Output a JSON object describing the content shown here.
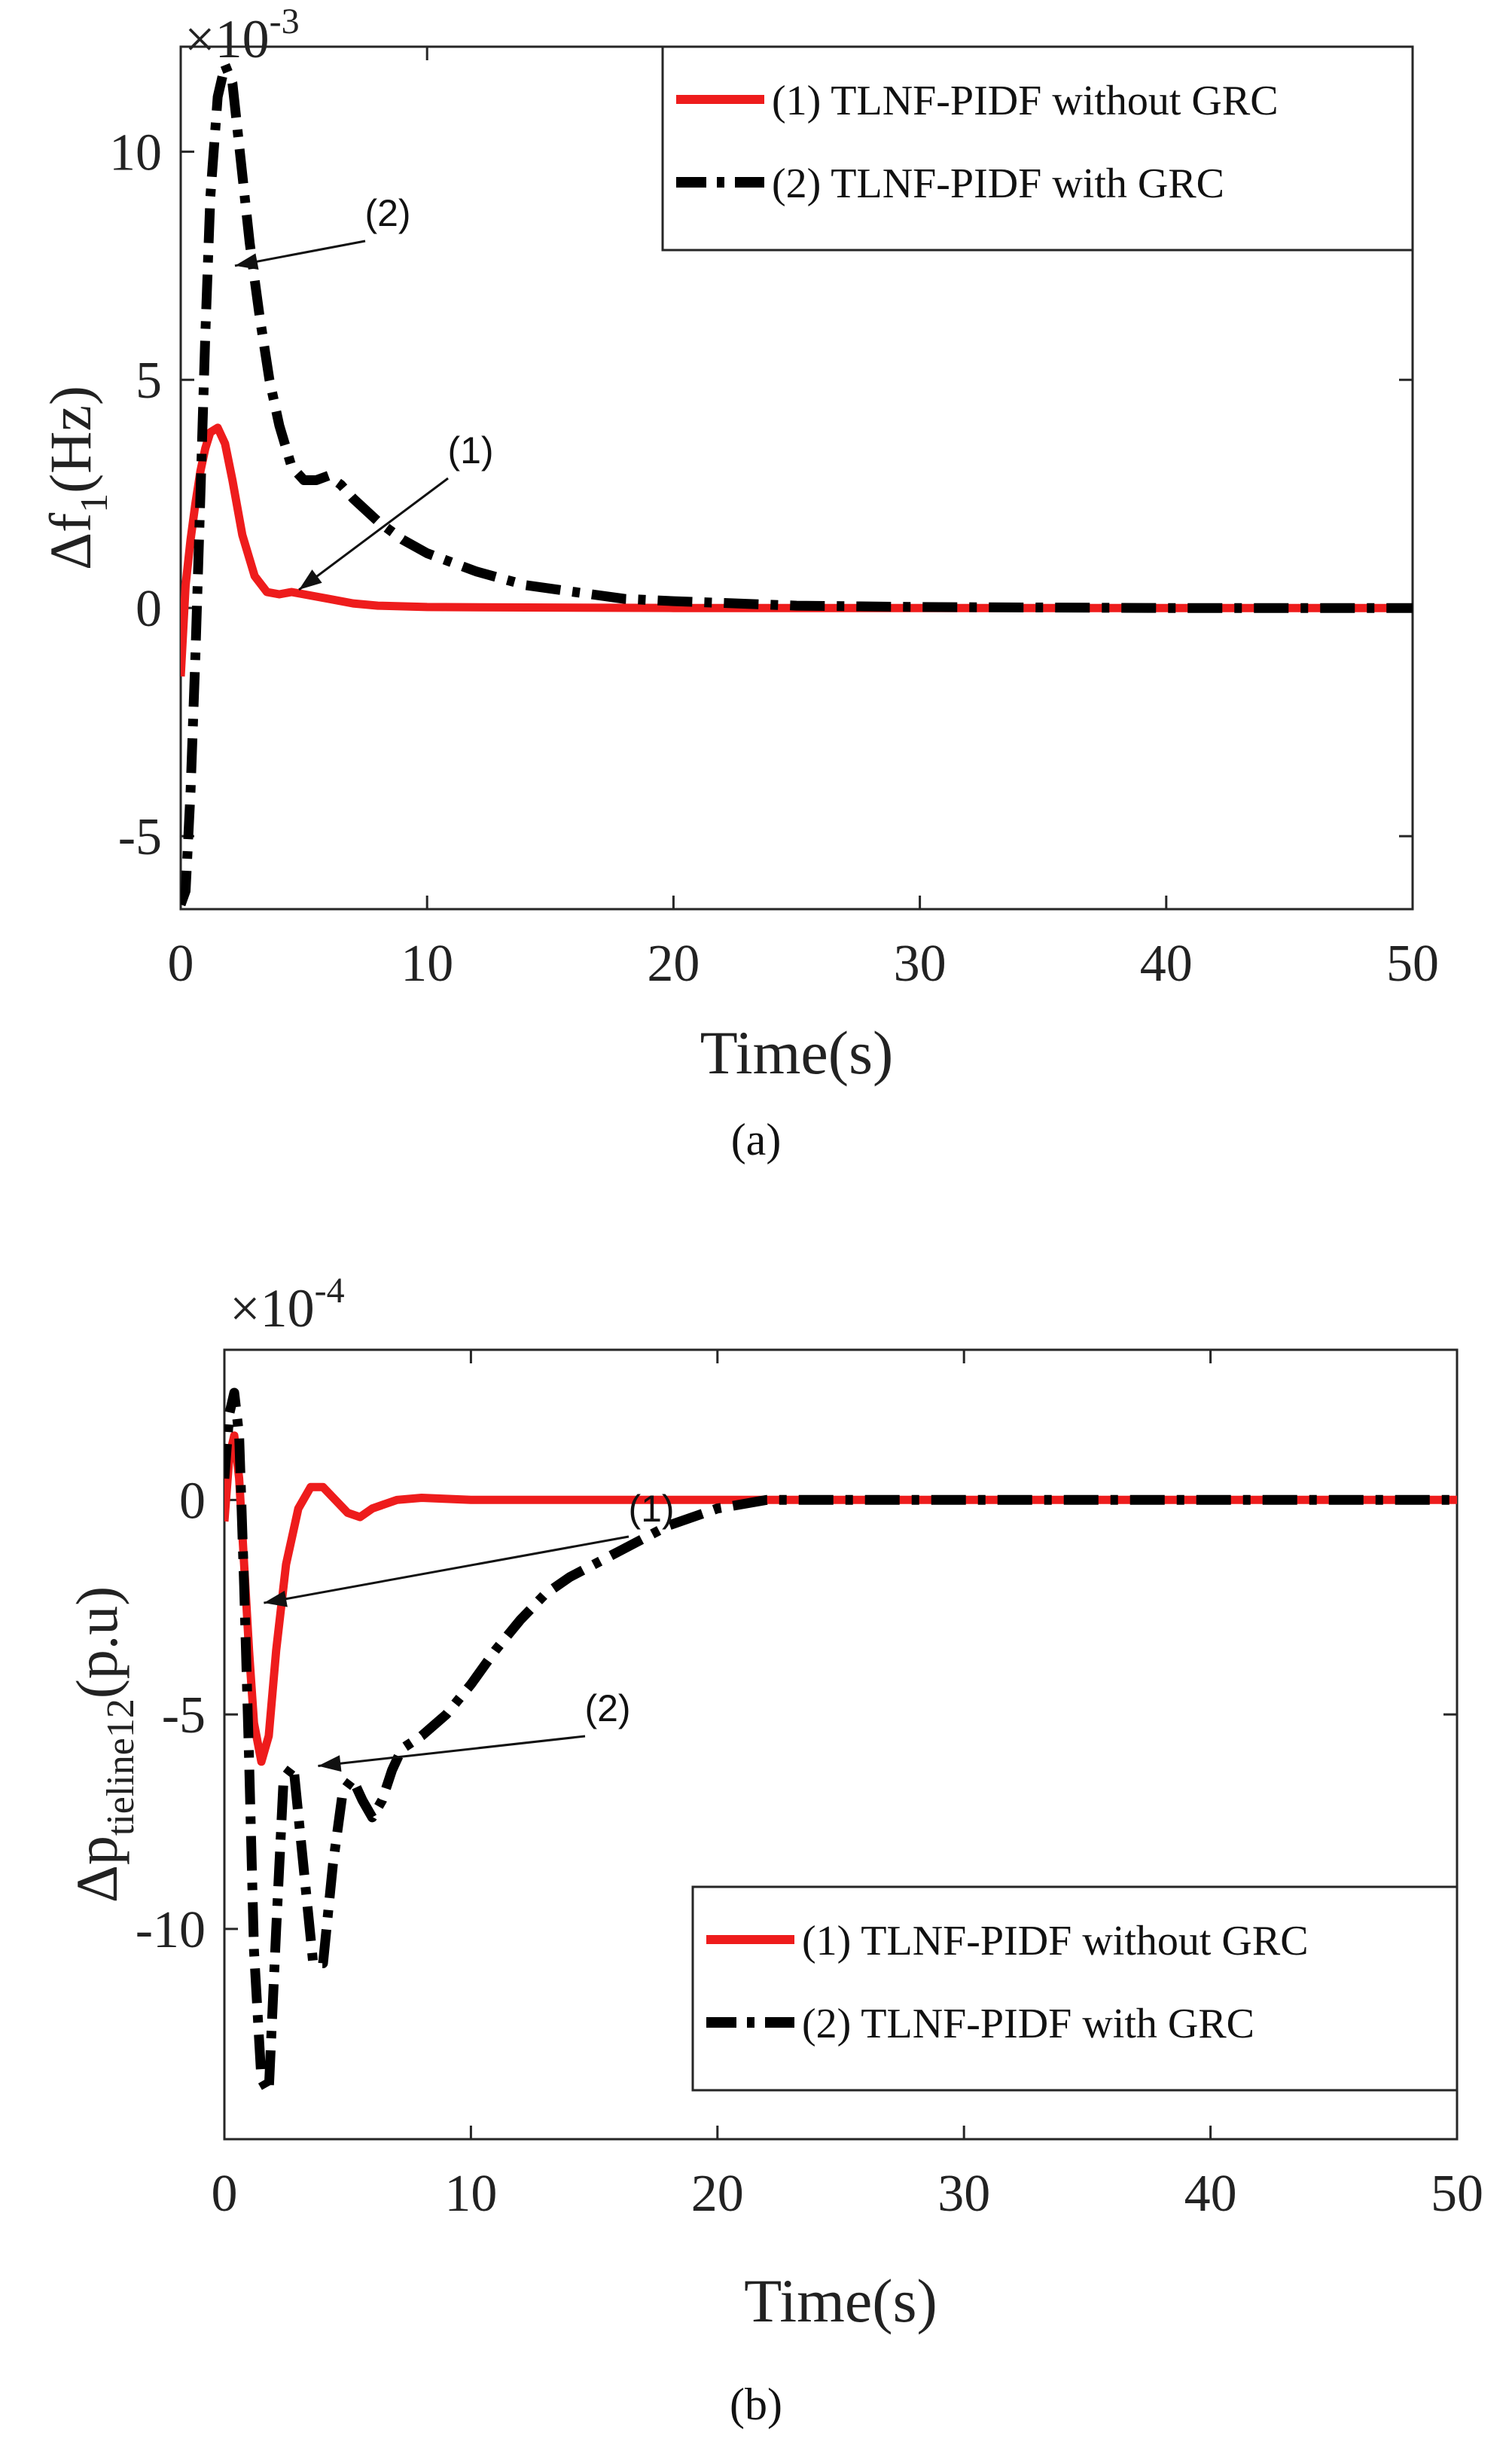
{
  "chart_data": [
    {
      "panel": "a",
      "type": "line",
      "caption": "(a)",
      "xlabel": "Time(s)",
      "ylabel": {
        "main": "Δf",
        "sub": "1",
        "unit": "(Hz)"
      },
      "yscale_multiplier": {
        "base": "×10",
        "exp": "-3"
      },
      "xlim": [
        0,
        50
      ],
      "ylim": [
        -6.6,
        12.3
      ],
      "xticks": [
        0,
        10,
        20,
        30,
        40,
        50
      ],
      "yticks": [
        -5,
        0,
        5,
        10
      ],
      "grid": false,
      "legend_position": "top-right",
      "series": [
        {
          "name": "(1) TLNF-PIDF without  GRC",
          "color": "#ee1c1c",
          "style": "solid",
          "x": [
            0,
            0.2,
            0.4,
            0.6,
            0.8,
            1.0,
            1.2,
            1.5,
            1.8,
            2.1,
            2.5,
            3.0,
            3.5,
            4.0,
            4.5,
            5.0,
            6.0,
            7.0,
            8.0,
            10,
            15,
            20,
            30,
            40,
            50
          ],
          "y": [
            -1.5,
            0.5,
            1.5,
            2.3,
            3.0,
            3.5,
            3.85,
            3.95,
            3.6,
            2.8,
            1.6,
            0.7,
            0.35,
            0.3,
            0.35,
            0.3,
            0.2,
            0.1,
            0.05,
            0.02,
            0.01,
            0.0,
            0.0,
            0.0,
            0.0
          ]
        },
        {
          "name": "(2) TLNF-PIDF with GRC",
          "color": "#000000",
          "style": "dashdot",
          "x": [
            0,
            0.2,
            0.4,
            0.6,
            0.8,
            1.0,
            1.2,
            1.5,
            1.8,
            2.1,
            2.4,
            2.8,
            3.2,
            3.6,
            4.0,
            4.5,
            5.0,
            5.5,
            6.0,
            6.5,
            7.0,
            8.0,
            9.0,
            10,
            12,
            14,
            16,
            18,
            20,
            25,
            30,
            40,
            50
          ],
          "y": [
            -6.5,
            -6.2,
            -4.0,
            -1.0,
            2.5,
            6.0,
            9.0,
            11.2,
            11.9,
            11.5,
            10.0,
            8.0,
            6.4,
            5.0,
            4.0,
            3.1,
            2.8,
            2.8,
            2.9,
            2.7,
            2.4,
            1.9,
            1.5,
            1.2,
            0.8,
            0.5,
            0.35,
            0.2,
            0.15,
            0.05,
            0.02,
            0.0,
            0.0
          ]
        }
      ],
      "annotations": [
        {
          "label": "(2)",
          "series_index": 1,
          "point": [
            2.2,
            7.5
          ]
        },
        {
          "label": "(1)",
          "series_index": 0,
          "point": [
            4.8,
            0.4
          ]
        }
      ]
    },
    {
      "panel": "b",
      "type": "line",
      "caption": "(b)",
      "xlabel": "Time(s)",
      "ylabel": {
        "main": "Δp",
        "sub": "tieline12",
        "unit": "(p.u)"
      },
      "yscale_multiplier": {
        "base": "×10",
        "exp": "-4"
      },
      "xlim": [
        0,
        50
      ],
      "ylim": [
        -14.9,
        3.5
      ],
      "xticks": [
        0,
        10,
        20,
        30,
        40,
        50
      ],
      "yticks": [
        -10,
        -5,
        0
      ],
      "grid": false,
      "legend_position": "bottom-right",
      "series": [
        {
          "name": "(1) TLNF-PIDF without  GRC",
          "color": "#ee1c1c",
          "style": "solid",
          "x": [
            0,
            0.2,
            0.4,
            0.6,
            0.8,
            1.0,
            1.2,
            1.5,
            1.8,
            2.1,
            2.5,
            3.0,
            3.5,
            4.0,
            4.5,
            5.0,
            5.5,
            6.0,
            7.0,
            8.0,
            10,
            15,
            20,
            30,
            40,
            50
          ],
          "y": [
            -0.5,
            1.0,
            1.5,
            0.5,
            -1.5,
            -3.5,
            -5.2,
            -6.1,
            -5.5,
            -3.5,
            -1.5,
            -0.2,
            0.3,
            0.3,
            0.0,
            -0.3,
            -0.4,
            -0.2,
            0.0,
            0.05,
            0.0,
            0.0,
            0.0,
            0.0,
            0.0,
            0.0
          ]
        },
        {
          "name": "(2) TLNF-PIDF with  GRC",
          "color": "#000000",
          "style": "dashdot",
          "x": [
            0,
            0.2,
            0.4,
            0.6,
            0.8,
            1.0,
            1.2,
            1.5,
            1.8,
            2.1,
            2.4,
            2.8,
            3.2,
            3.6,
            4.0,
            4.4,
            4.8,
            5.2,
            5.6,
            6.0,
            6.4,
            6.8,
            7.2,
            8.0,
            9.0,
            10,
            11,
            12,
            13,
            14,
            16,
            18,
            20,
            22,
            25,
            30,
            40,
            50
          ],
          "y": [
            0.5,
            2.0,
            2.5,
            1.5,
            -2.0,
            -6.0,
            -10.5,
            -13.5,
            -13.8,
            -10.0,
            -6.5,
            -6.2,
            -8.5,
            -10.8,
            -10.8,
            -8.5,
            -6.8,
            -6.5,
            -7.0,
            -7.4,
            -7.0,
            -6.3,
            -5.8,
            -5.5,
            -5.0,
            -4.3,
            -3.5,
            -2.8,
            -2.2,
            -1.8,
            -1.2,
            -0.6,
            -0.2,
            0.0,
            0.0,
            0.0,
            0.0,
            0.0
          ]
        }
      ],
      "annotations": [
        {
          "label": "(1)",
          "series_index": 0,
          "point": [
            1.6,
            -2.4
          ]
        },
        {
          "label": "(2)",
          "series_index": 1,
          "point": [
            3.8,
            -6.2
          ]
        }
      ]
    }
  ]
}
